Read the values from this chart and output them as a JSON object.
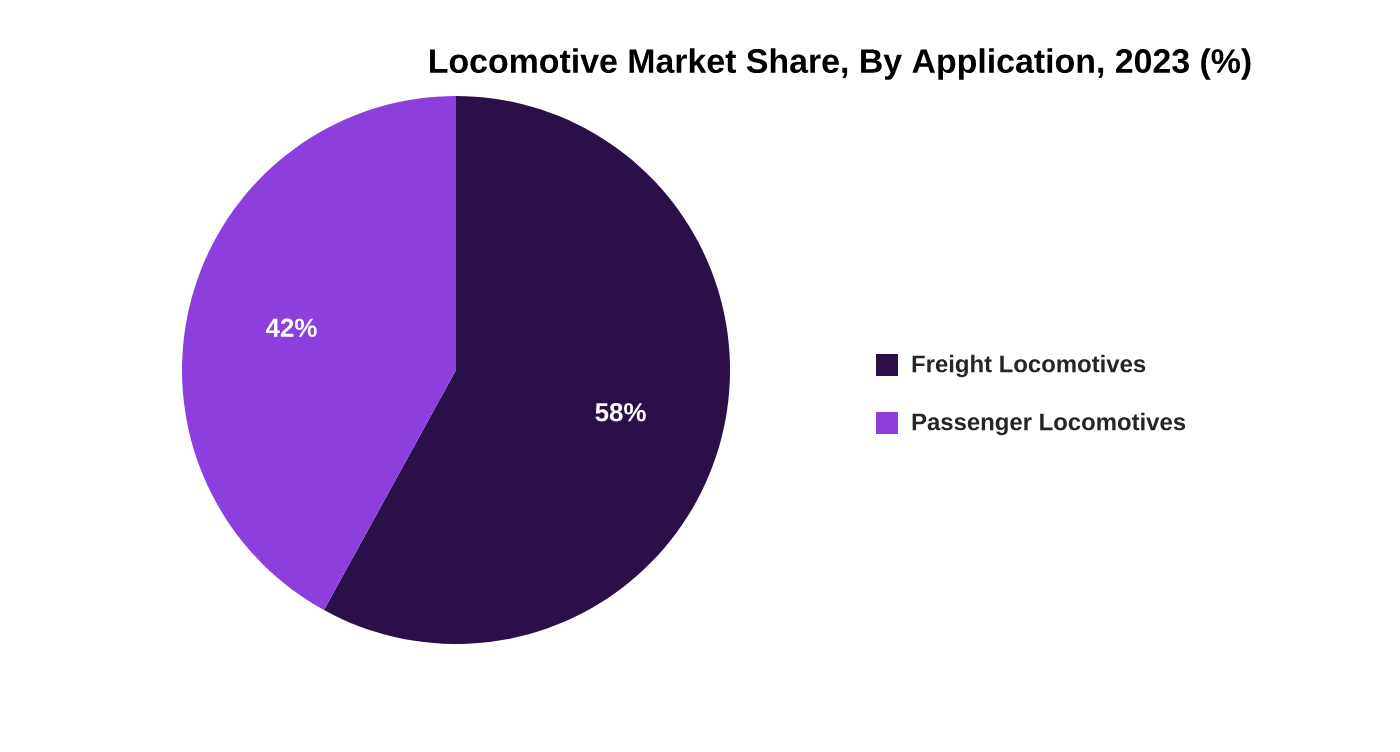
{
  "chart_data": {
    "type": "pie",
    "title": "Locomotive Market Share, By Application, 2023 (%)",
    "categories": [
      "Freight Locomotives",
      "Passenger Locomotives"
    ],
    "values": [
      58,
      42
    ],
    "colors": [
      "#2b0f48",
      "#8c3fdc"
    ],
    "value_labels": [
      "58%",
      "42%"
    ],
    "legend": "right"
  }
}
